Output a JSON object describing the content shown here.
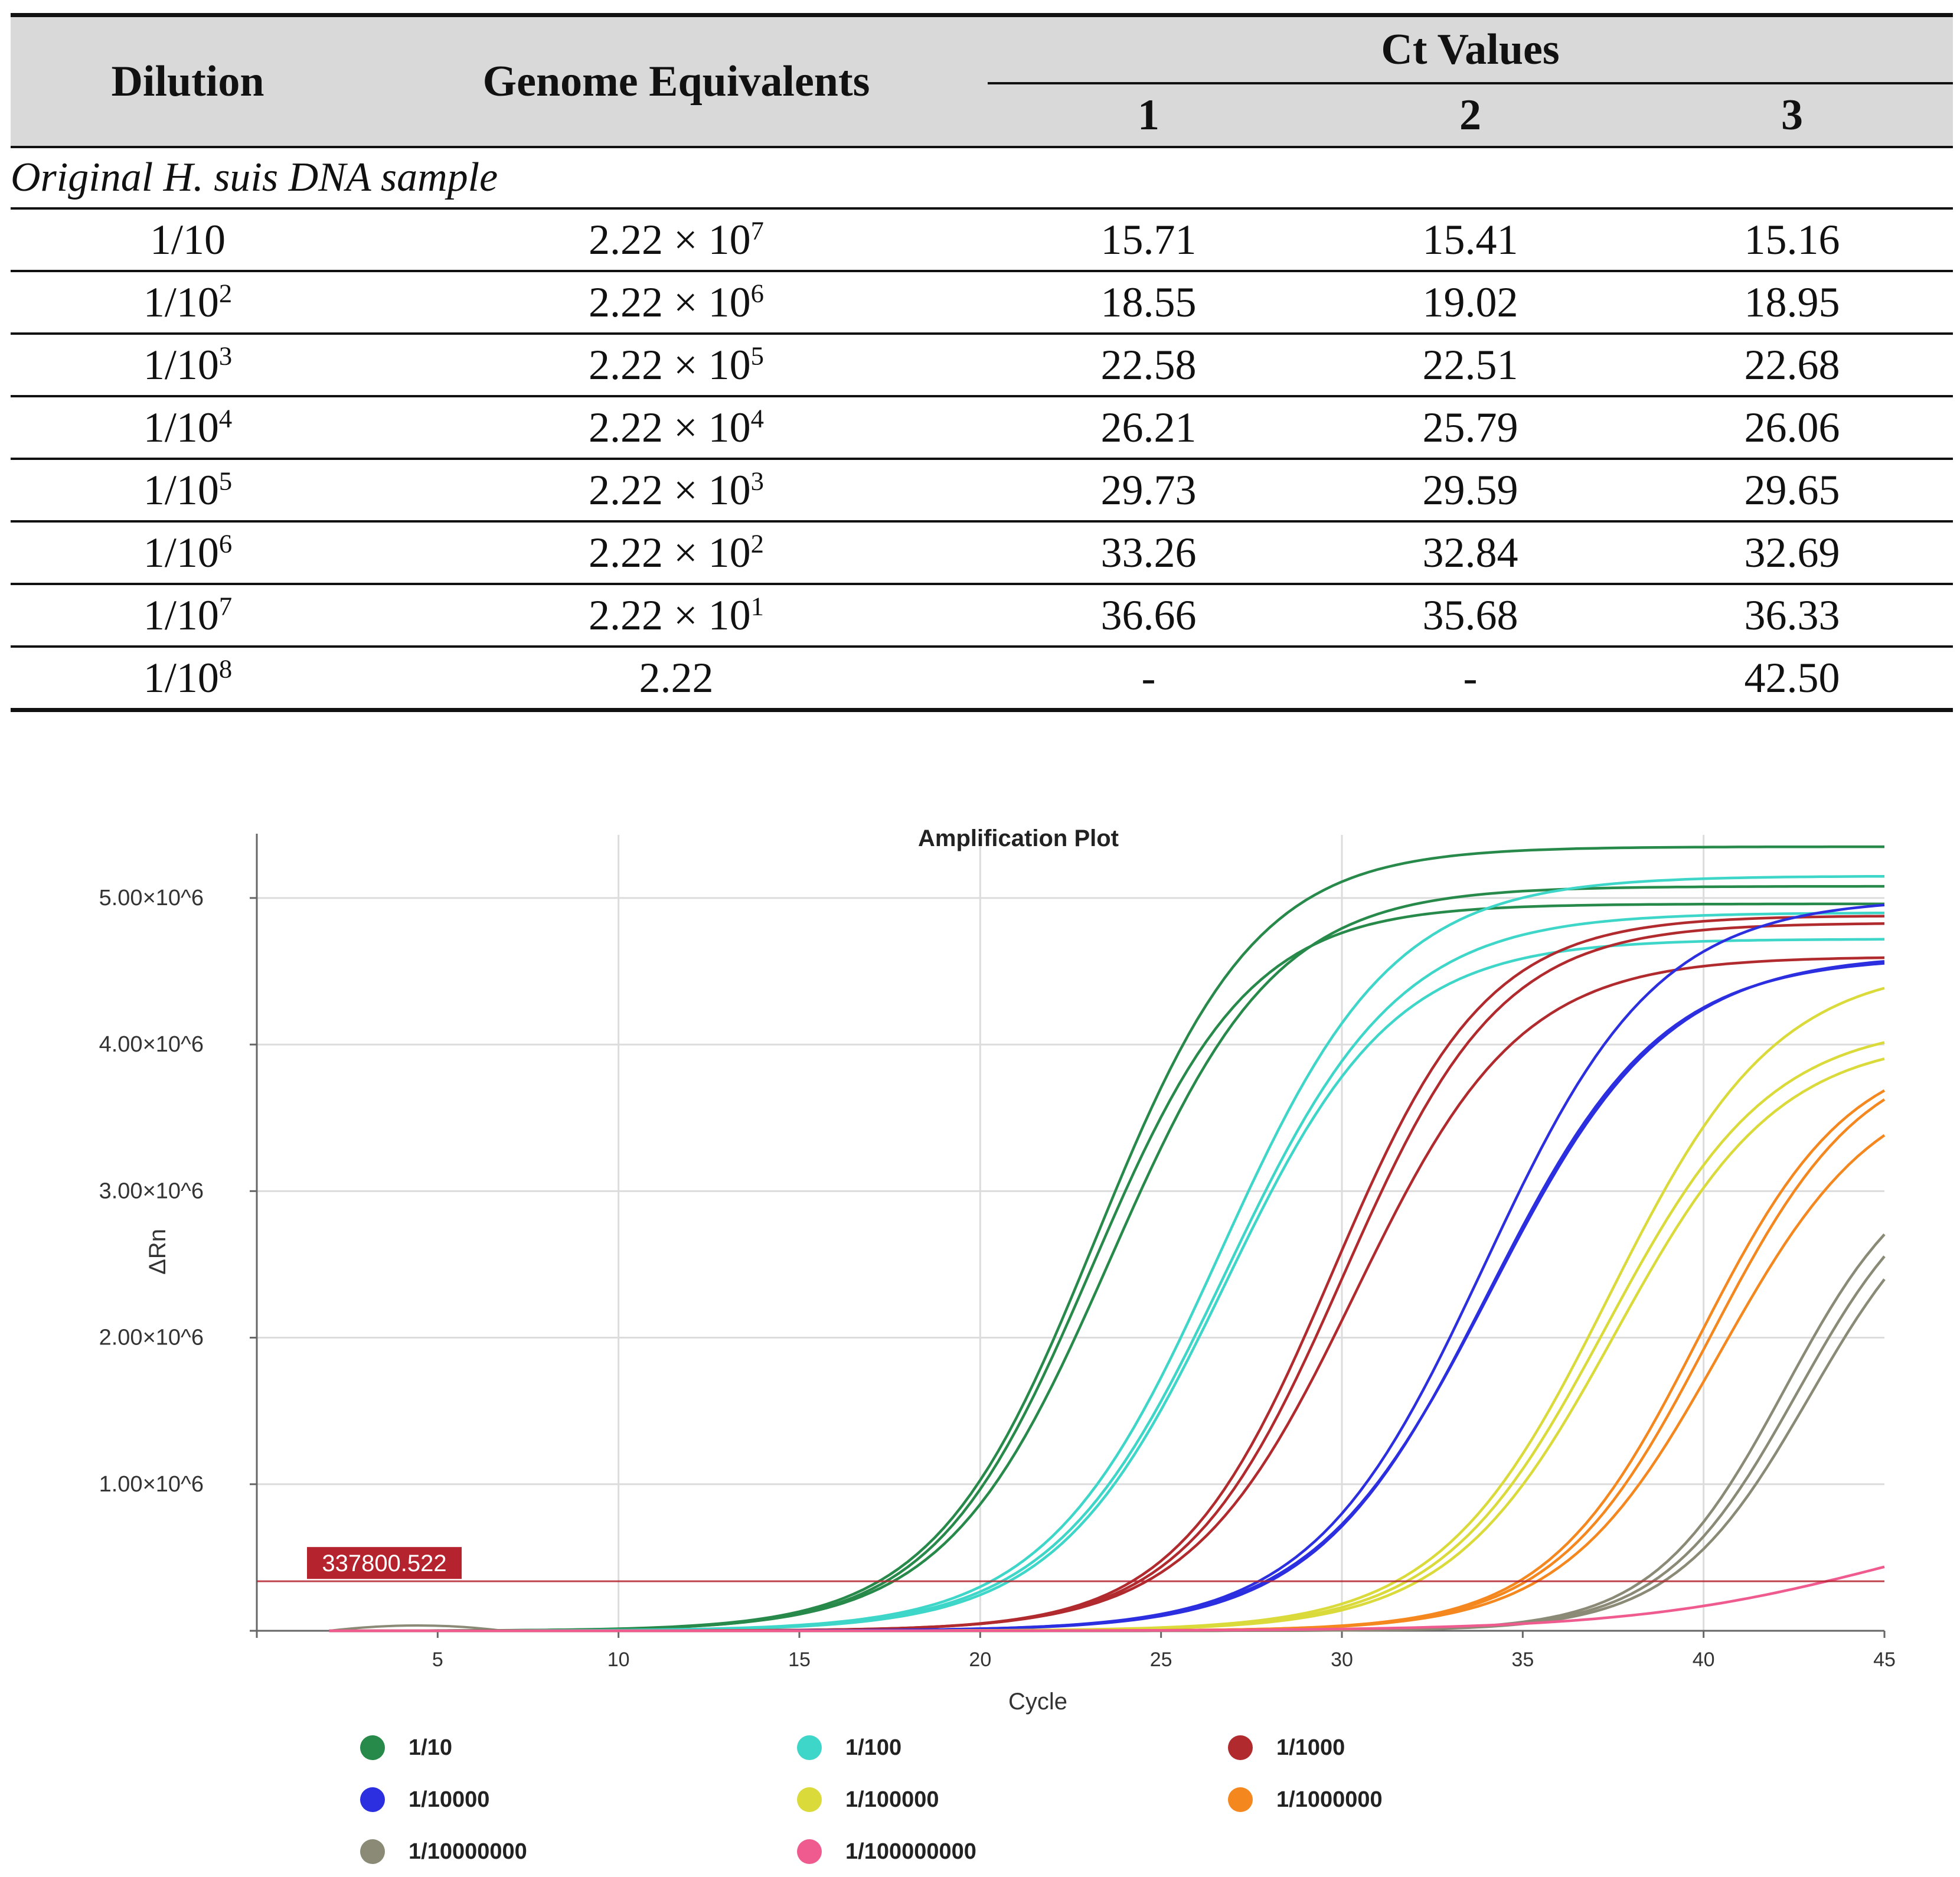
{
  "table": {
    "headers": {
      "dilution": "Dilution",
      "genome_equivalents": "Genome Equivalents",
      "ct_values": "Ct Values",
      "replicates": [
        "1",
        "2",
        "3"
      ]
    },
    "section_label": "Original H. suis DNA sample",
    "rows": [
      {
        "dil_base": "1/10",
        "dil_exp": "",
        "ge_base": "2.22 × 10",
        "ge_exp": "7",
        "v1": "15.71",
        "v2": "15.41",
        "v3": "15.16"
      },
      {
        "dil_base": "1/10",
        "dil_exp": "2",
        "ge_base": "2.22 × 10",
        "ge_exp": "6",
        "v1": "18.55",
        "v2": "19.02",
        "v3": "18.95"
      },
      {
        "dil_base": "1/10",
        "dil_exp": "3",
        "ge_base": "2.22 × 10",
        "ge_exp": "5",
        "v1": "22.58",
        "v2": "22.51",
        "v3": "22.68"
      },
      {
        "dil_base": "1/10",
        "dil_exp": "4",
        "ge_base": "2.22 × 10",
        "ge_exp": "4",
        "v1": "26.21",
        "v2": "25.79",
        "v3": "26.06"
      },
      {
        "dil_base": "1/10",
        "dil_exp": "5",
        "ge_base": "2.22 × 10",
        "ge_exp": "3",
        "v1": "29.73",
        "v2": "29.59",
        "v3": "29.65"
      },
      {
        "dil_base": "1/10",
        "dil_exp": "6",
        "ge_base": "2.22 × 10",
        "ge_exp": "2",
        "v1": "33.26",
        "v2": "32.84",
        "v3": "32.69"
      },
      {
        "dil_base": "1/10",
        "dil_exp": "7",
        "ge_base": "2.22 × 10",
        "ge_exp": "1",
        "v1": "36.66",
        "v2": "35.68",
        "v3": "36.33"
      },
      {
        "dil_base": "1/10",
        "dil_exp": "8",
        "ge_base": "2.22",
        "ge_exp": "",
        "v1": "-",
        "v2": "-",
        "v3": "42.50"
      }
    ]
  },
  "chart_data": {
    "type": "line",
    "title": "Amplification Plot",
    "xlabel": "Cycle",
    "ylabel": "ΔRn",
    "xlim": [
      0,
      45
    ],
    "ylim": [
      0,
      5350000
    ],
    "xticks": [
      5,
      10,
      15,
      20,
      25,
      30,
      35,
      40,
      45
    ],
    "yticks": [
      {
        "value": 1000000,
        "label": "1.00×10^6"
      },
      {
        "value": 2000000,
        "label": "2.00×10^6"
      },
      {
        "value": 3000000,
        "label": "3.00×10^6"
      },
      {
        "value": 4000000,
        "label": "4.00×10^6"
      },
      {
        "value": 5000000,
        "label": "5.00×10^6"
      }
    ],
    "threshold": {
      "value": 337800.522,
      "label": "337800.522",
      "color": "#b5232e"
    },
    "grid": true,
    "legend_position": "bottom",
    "series": [
      {
        "name": "1/10",
        "color": "#27894a",
        "ct": [
          17.2,
          17.4,
          17.6
        ],
        "plateau": [
          5350000,
          4960000,
          5080000
        ],
        "k": [
          0.45,
          0.46,
          0.44
        ]
      },
      {
        "name": "1/100",
        "color": "#3ed6c8",
        "ct": [
          20.3,
          20.6,
          20.8
        ],
        "plateau": [
          5150000,
          4900000,
          4720000
        ],
        "k": [
          0.42,
          0.42,
          0.43
        ]
      },
      {
        "name": "1/1000",
        "color": "#b02a2e",
        "ct": [
          24.2,
          24.4,
          24.6
        ],
        "plateau": [
          4880000,
          4830000,
          4600000
        ],
        "k": [
          0.47,
          0.46,
          0.44
        ]
      },
      {
        "name": "1/10000",
        "color": "#2b2fe0",
        "ct": [
          27.7,
          27.9,
          28.0
        ],
        "plateau": [
          5000000,
          4620000,
          4600000
        ],
        "k": [
          0.42,
          0.41,
          0.42
        ]
      },
      {
        "name": "1/100000",
        "color": "#dada3a",
        "ct": [
          31.5,
          31.8,
          32.1
        ],
        "plateau": [
          4550000,
          4150000,
          4050000
        ],
        "k": [
          0.43,
          0.44,
          0.44
        ]
      },
      {
        "name": "1/1000000",
        "color": "#f5871f",
        "ct": [
          34.9,
          35.1,
          35.4
        ],
        "plateau": [
          4000000,
          4000000,
          3800000
        ],
        "k": [
          0.48,
          0.47,
          0.46
        ]
      },
      {
        "name": "1/10000000",
        "color": "#8a8a76",
        "ct": [
          38.3,
          38.6,
          38.9
        ],
        "plateau": [
          3300000,
          3250000,
          3200000
        ],
        "k": [
          0.55,
          0.54,
          0.53
        ]
      },
      {
        "name": "1/100000000",
        "color": "#ef5b8e",
        "ct": [
          43.4
        ],
        "plateau": [
          900000
        ],
        "k": [
          0.28
        ]
      }
    ]
  }
}
